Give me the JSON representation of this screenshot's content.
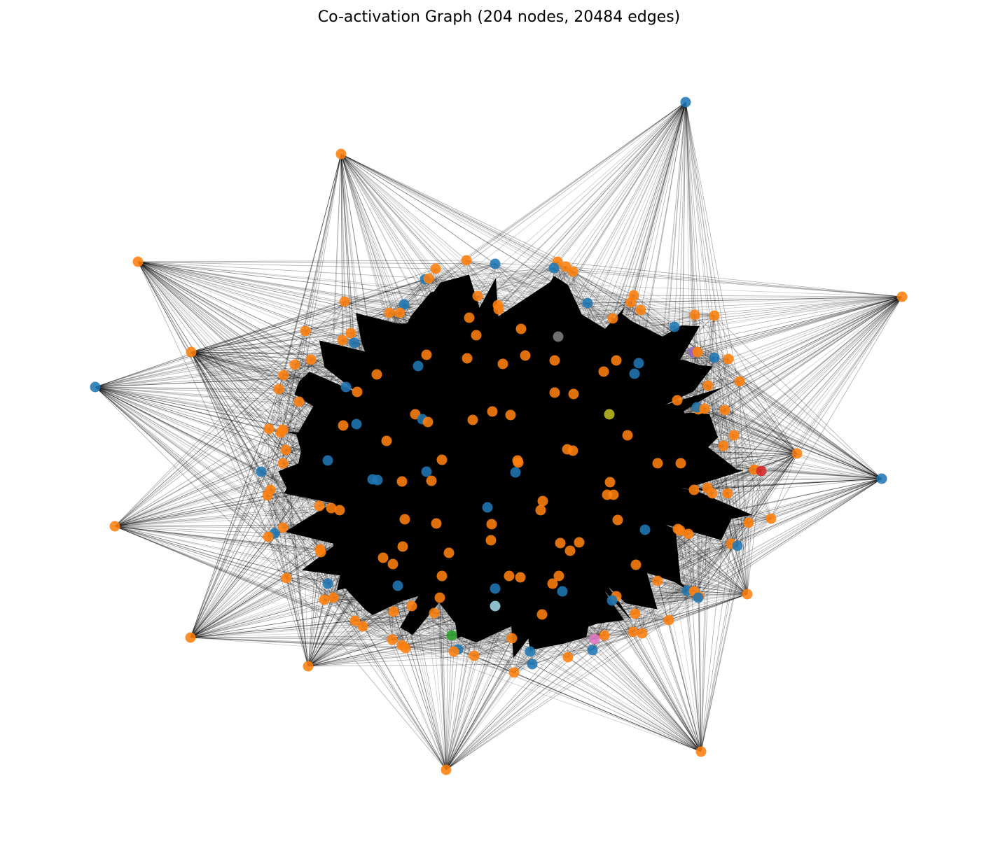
{
  "title": "Co-activation Graph (204 nodes, 20484 edges)",
  "graph": {
    "node_count": 204,
    "edge_count": 20484,
    "edge_color": "#000000",
    "core_fill_color": "#000000",
    "node_colors": {
      "orange": "#ff7f0e",
      "blue": "#1f77b4",
      "gray": "#7f7f7f",
      "olive": "#bcbd22",
      "purple": "#9467bd",
      "red": "#d62728",
      "green": "#2ca02c",
      "pink": "#e377c2",
      "cyan": "#9edae5"
    }
  }
}
